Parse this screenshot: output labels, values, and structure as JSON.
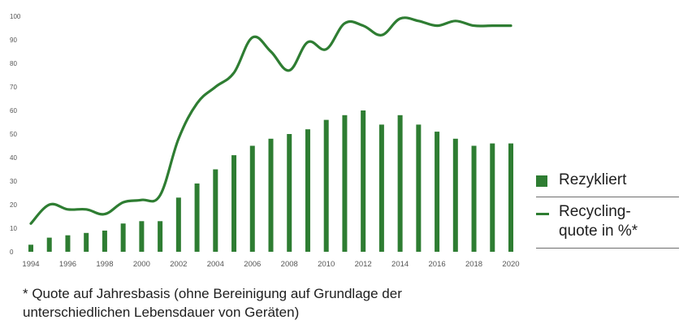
{
  "colors": {
    "bars": "#2e7d32",
    "line": "#2e7d32",
    "text": "#1e1e1e",
    "ticks": "#555555",
    "rule": "#6e6e6e"
  },
  "chart_data": {
    "type": "bar",
    "x": [
      1994,
      1995,
      1996,
      1997,
      1998,
      1999,
      2000,
      2001,
      2002,
      2003,
      2004,
      2005,
      2006,
      2007,
      2008,
      2009,
      2010,
      2011,
      2012,
      2013,
      2014,
      2015,
      2016,
      2017,
      2018,
      2019,
      2020
    ],
    "x_tick_labels": [
      "1994",
      "1996",
      "1998",
      "2000",
      "2002",
      "2004",
      "2006",
      "2008",
      "2010",
      "2012",
      "2014",
      "2016",
      "2018",
      "2020"
    ],
    "y_tick_labels": [
      "0",
      "10",
      "20",
      "30",
      "40",
      "50",
      "60",
      "70",
      "80",
      "90",
      "100"
    ],
    "ylim": [
      0,
      100
    ],
    "grid": false,
    "legend_position": "right",
    "series": [
      {
        "name": "Rezykliert",
        "type": "bar",
        "values": [
          3,
          6,
          7,
          8,
          9,
          12,
          13,
          13,
          23,
          29,
          35,
          41,
          45,
          48,
          50,
          52,
          56,
          58,
          60,
          54,
          58,
          54,
          51,
          48,
          45,
          46,
          46
        ]
      },
      {
        "name": "Recycling-\nquote in %*",
        "type": "line",
        "values": [
          12,
          20,
          18,
          18,
          16,
          21,
          22,
          24,
          48,
          63,
          70,
          76,
          91,
          85,
          77,
          89,
          86,
          97,
          96,
          92,
          99,
          98,
          96,
          98,
          96,
          96,
          96
        ]
      }
    ]
  },
  "legend": {
    "bars_label": "Rezykliert",
    "line_label": "Recycling-\nquote in %*"
  },
  "footnote": "* Quote auf Jahresbasis (ohne Bereinigung auf Grundlage der unterschiedlichen Lebensdauer von Geräten)"
}
